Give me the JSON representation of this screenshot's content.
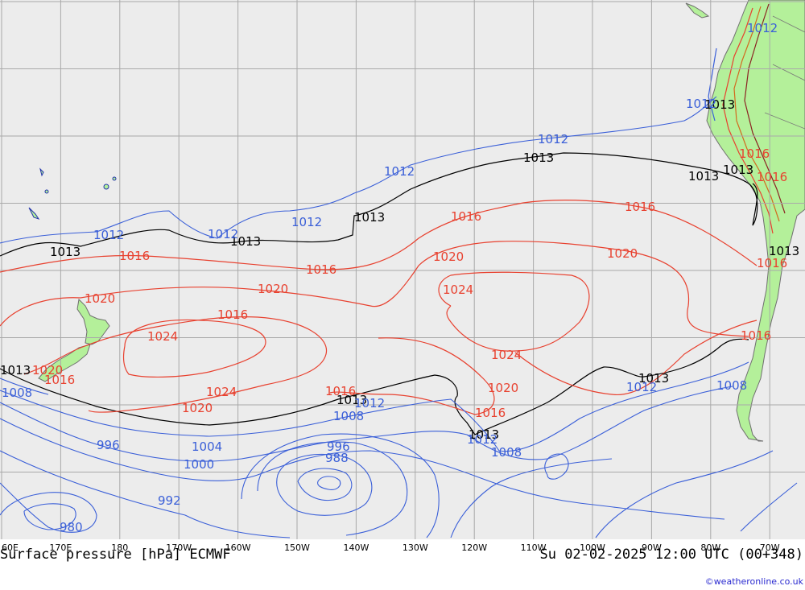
{
  "map": {
    "title": "Surface pressure [hPa] ECMWF",
    "valid_time": "Su 02-02-2025 12:00 UTC (00+348)",
    "credit": "©weatheronline.co.uk",
    "colors": {
      "ocean": "#ececec",
      "land": "#b4f09a",
      "grid": "#a9a9a9",
      "isobar_black": "#000000",
      "isobar_red": "#e8412f",
      "isobar_blue": "#3a5fd8"
    },
    "longitude_ticks": [
      "60E",
      "170E",
      "180",
      "170W",
      "160W",
      "150W",
      "140W",
      "130W",
      "120W",
      "110W",
      "100W",
      "90W",
      "80W",
      "70W"
    ],
    "isobar_labels": {
      "black": [
        "1013",
        "1013",
        "1013",
        "1013",
        "1013",
        "1013",
        "1013",
        "1013",
        "1013",
        "1013",
        "1013",
        "1013"
      ],
      "red": [
        "1016",
        "1016",
        "1016",
        "1016",
        "1016",
        "1016",
        "1016",
        "1016",
        "1020",
        "1020",
        "1020",
        "1020",
        "1020",
        "1020",
        "1020",
        "1024",
        "1024",
        "1024",
        "1024",
        "1016",
        "1016",
        "1016",
        "1016"
      ],
      "blue": [
        "1012",
        "1012",
        "1012",
        "1012",
        "1012",
        "1012",
        "1012",
        "1012",
        "1008",
        "1008",
        "1008",
        "1008",
        "1004",
        "1000",
        "996",
        "996",
        "992",
        "988",
        "980",
        "1012",
        "1012"
      ]
    }
  }
}
